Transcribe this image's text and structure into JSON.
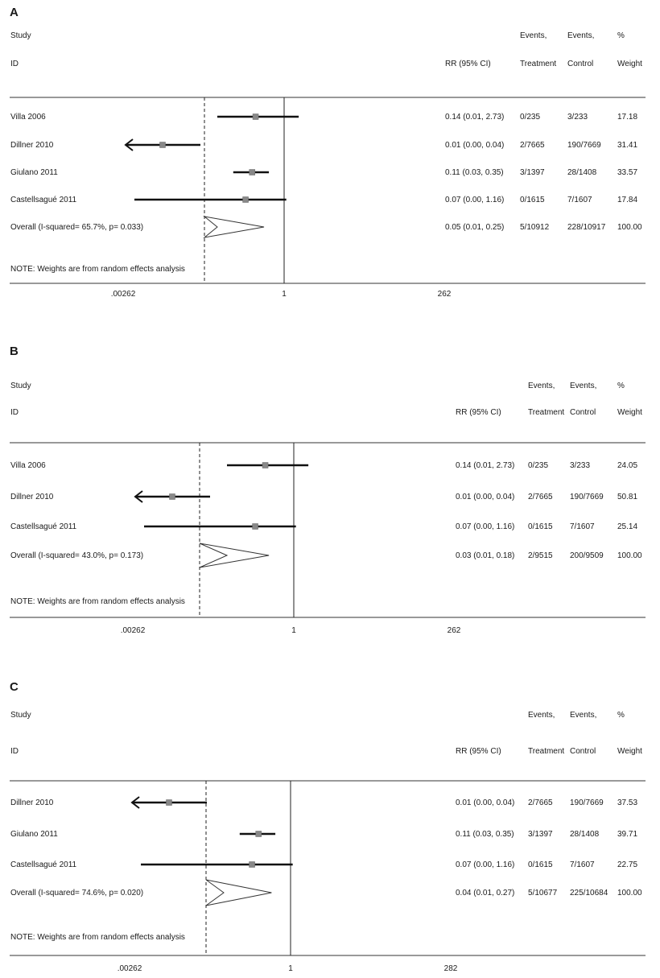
{
  "chart_data": [
    {
      "type": "forest",
      "panel_label": "A",
      "headers": {
        "study": "Study",
        "id": "ID",
        "rr": "RR (95% CI)",
        "events_t_1": "Events,",
        "events_t_2": "Treatment",
        "events_c_1": "Events,",
        "events_c_2": "Control",
        "weight_1": "%",
        "weight_2": "Weight"
      },
      "studies": [
        {
          "name": "Villa 2006",
          "rr": 0.14,
          "ci_low": 0.01,
          "ci_high": 2.73,
          "rr_text": "0.14 (0.01, 2.73)",
          "events_treatment": "0/235",
          "events_control": "3/233",
          "weight": "17.18"
        },
        {
          "name": "Dillner 2010",
          "rr": 0.01,
          "ci_low": 0.0,
          "ci_high": 0.04,
          "rr_text": "0.01 (0.00, 0.04)",
          "events_treatment": "2/7665",
          "events_control": "190/7669",
          "weight": "31.41"
        },
        {
          "name": "Giulano 2011",
          "rr": 0.11,
          "ci_low": 0.03,
          "ci_high": 0.35,
          "rr_text": "0.11 (0.03, 0.35)",
          "events_treatment": "3/1397",
          "events_control": "28/1408",
          "weight": "33.57"
        },
        {
          "name": "Castellsagué 2011",
          "rr": 0.07,
          "ci_low": 0.0,
          "ci_high": 1.16,
          "rr_text": "0.07 (0.00, 1.16)",
          "events_treatment": "0/1615",
          "events_control": "7/1607",
          "weight": "17.84"
        }
      ],
      "overall": {
        "name": "Overall (I-squared= 65.7%, p= 0.033)",
        "rr": 0.05,
        "ci_low": 0.01,
        "ci_high": 0.25,
        "rr_text": "0.05 (0.01, 0.25)",
        "events_treatment": "5/10912",
        "events_control": "228/10917",
        "weight": "100.00"
      },
      "note": "NOTE: Weights are from random effects analysis",
      "xticks": [
        ".00262",
        "1",
        "262"
      ],
      "xscale": "log",
      "xlim": [
        0.00262,
        381.7
      ]
    },
    {
      "type": "forest",
      "panel_label": "B",
      "headers": {
        "study": "Study",
        "id": "ID",
        "rr": "RR (95% CI)",
        "events_t_1": "Events,",
        "events_t_2": "Treatment",
        "events_c_1": "Events,",
        "events_c_2": "Control",
        "weight_1": "%",
        "weight_2": "Weight"
      },
      "studies": [
        {
          "name": "Villa 2006",
          "rr": 0.14,
          "ci_low": 0.01,
          "ci_high": 2.73,
          "rr_text": "0.14 (0.01, 2.73)",
          "events_treatment": "0/235",
          "events_control": "3/233",
          "weight": "24.05"
        },
        {
          "name": "Dillner 2010",
          "rr": 0.01,
          "ci_low": 0.0,
          "ci_high": 0.04,
          "rr_text": "0.01 (0.00, 0.04)",
          "events_treatment": "2/7665",
          "events_control": "190/7669",
          "weight": "50.81"
        },
        {
          "name": "Castellsagué 2011",
          "rr": 0.07,
          "ci_low": 0.0,
          "ci_high": 1.16,
          "rr_text": "0.07 (0.00, 1.16)",
          "events_treatment": "0/1615",
          "events_control": "7/1607",
          "weight": "25.14"
        }
      ],
      "overall": {
        "name": "Overall (I-squared= 43.0%, p= 0.173)",
        "rr": 0.03,
        "ci_low": 0.01,
        "ci_high": 0.18,
        "rr_text": "0.03 (0.01, 0.18)",
        "events_treatment": "2/9515",
        "events_control": "200/9509",
        "weight": "100.00"
      },
      "note": "NOTE: Weights are from random effects analysis",
      "xticks": [
        ".00262",
        "1",
        "262"
      ],
      "xscale": "log",
      "xlim": [
        0.00262,
        381.7
      ]
    },
    {
      "type": "forest",
      "panel_label": "C",
      "headers": {
        "study": "Study",
        "id": "ID",
        "rr": "RR (95% CI)",
        "events_t_1": "Events,",
        "events_t_2": "Treatment",
        "events_c_1": "Events,",
        "events_c_2": "Control",
        "weight_1": "%",
        "weight_2": "Weight"
      },
      "studies": [
        {
          "name": "Dillner 2010",
          "rr": 0.01,
          "ci_low": 0.0,
          "ci_high": 0.04,
          "rr_text": "0.01 (0.00, 0.04)",
          "events_treatment": "2/7665",
          "events_control": "190/7669",
          "weight": "37.53"
        },
        {
          "name": "Giulano 2011",
          "rr": 0.11,
          "ci_low": 0.03,
          "ci_high": 0.35,
          "rr_text": "0.11 (0.03, 0.35)",
          "events_treatment": "3/1397",
          "events_control": "28/1408",
          "weight": "39.71"
        },
        {
          "name": "Castellsagué 2011",
          "rr": 0.07,
          "ci_low": 0.0,
          "ci_high": 1.16,
          "rr_text": "0.07 (0.00, 1.16)",
          "events_treatment": "0/1615",
          "events_control": "7/1607",
          "weight": "22.75"
        }
      ],
      "overall": {
        "name": "Overall (I-squared= 74.6%, p= 0.020)",
        "rr": 0.04,
        "ci_low": 0.01,
        "ci_high": 0.27,
        "rr_text": "0.04 (0.01, 0.27)",
        "events_treatment": "5/10677",
        "events_control": "225/10684",
        "weight": "100.00"
      },
      "note": "NOTE: Weights are from random effects analysis",
      "xticks": [
        ".00262",
        "1",
        "282"
      ],
      "xscale": "log",
      "xlim": [
        0.00262,
        381.7
      ]
    }
  ]
}
